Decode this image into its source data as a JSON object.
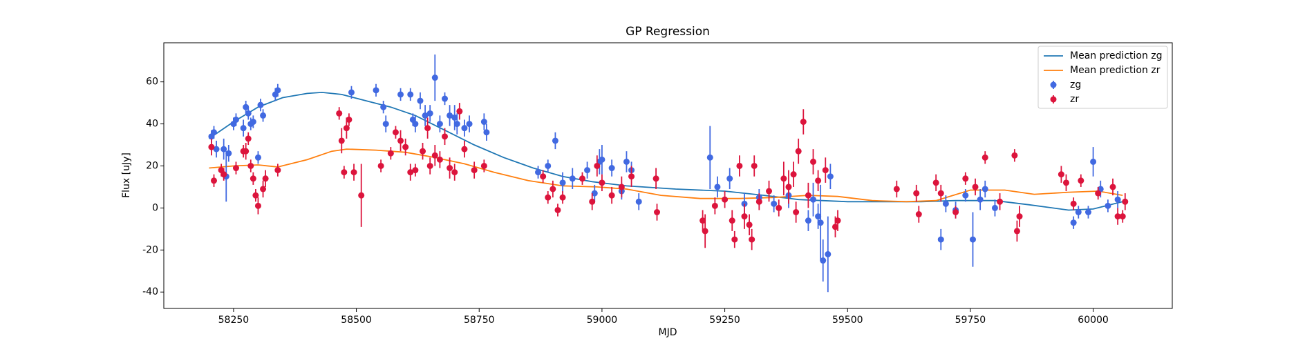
{
  "chart_data": {
    "type": "scatter",
    "title": "GP Regression",
    "x_label": "MJD",
    "y_label": "Flux [uJy]",
    "xlim": [
      58108,
      60161
    ],
    "ylim": [
      -47.8,
      78.6
    ],
    "xticks": [
      58250,
      58500,
      58750,
      59000,
      59250,
      59500,
      59750,
      60000
    ],
    "yticks": [
      -40,
      -20,
      0,
      20,
      40,
      60
    ],
    "legend": "upper right",
    "series": [
      {
        "name": "Mean prediction zg",
        "type": "line",
        "color": "#1f77b4",
        "x": [
          58200,
          58250,
          58300,
          58350,
          58400,
          58430,
          58470,
          58520,
          58570,
          58620,
          58680,
          58740,
          58800,
          58860,
          58920,
          58980,
          59050,
          59150,
          59250,
          59330,
          59400,
          59500,
          59580,
          59650,
          59720,
          59800,
          59870,
          59950,
          60000,
          60060
        ],
        "values": [
          33,
          41,
          48,
          52.5,
          54.5,
          55,
          54,
          51,
          48,
          44,
          37,
          30,
          24,
          19,
          15,
          12.5,
          10.5,
          9,
          8,
          6,
          4,
          3,
          3,
          3,
          3.5,
          3.5,
          1.5,
          -1,
          -0.5,
          3
        ]
      },
      {
        "name": "Mean prediction zr",
        "type": "line",
        "color": "#ff7f0e",
        "x": [
          58200,
          58250,
          58300,
          58340,
          58400,
          58450,
          58480,
          58540,
          58600,
          58660,
          58720,
          58780,
          58850,
          58920,
          58990,
          59050,
          59120,
          59200,
          59280,
          59350,
          59420,
          59480,
          59550,
          59620,
          59680,
          59750,
          59820,
          59880,
          59950,
          60010,
          60060
        ],
        "values": [
          19,
          20,
          20.5,
          19.5,
          23,
          27,
          28,
          27.5,
          26.5,
          24,
          21,
          17,
          13,
          10.5,
          10,
          9,
          6,
          4.5,
          4.5,
          5,
          6,
          5.5,
          3.5,
          3,
          3.5,
          8.5,
          8.5,
          6.5,
          7.5,
          8,
          6
        ]
      },
      {
        "name": "zg",
        "type": "errorbar",
        "color": "#4169e1",
        "x": [
          58205,
          58210,
          58215,
          58230,
          58235,
          58240,
          58250,
          58255,
          58270,
          58275,
          58280,
          58285,
          58290,
          58300,
          58305,
          58310,
          58335,
          58340,
          58490,
          58540,
          58555,
          58560,
          58590,
          58610,
          58615,
          58620,
          58630,
          58640,
          58650,
          58660,
          58670,
          58680,
          58690,
          58700,
          58705,
          58720,
          58730,
          58760,
          58765,
          58870,
          58890,
          58905,
          58920,
          58940,
          58970,
          58985,
          58995,
          59000,
          59020,
          59040,
          59050,
          59060,
          59075,
          59220,
          59235,
          59260,
          59290,
          59320,
          59350,
          59380,
          59420,
          59430,
          59440,
          59445,
          59450,
          59460,
          59465,
          59690,
          59700,
          59720,
          59740,
          59755,
          59770,
          59780,
          59800,
          59960,
          59970,
          59990,
          60000,
          60015,
          60030,
          60050
        ],
        "values": [
          34,
          36,
          28,
          28,
          15,
          26,
          40,
          42,
          38,
          48,
          45,
          40,
          41,
          24,
          49,
          44,
          54,
          56,
          55,
          56,
          48,
          40,
          54,
          54,
          42,
          40,
          51,
          44,
          45,
          62,
          40,
          52,
          44,
          43,
          40,
          38,
          40,
          41,
          36,
          17,
          20,
          32,
          12,
          14,
          18,
          7,
          22,
          23,
          19,
          8,
          22,
          18,
          3,
          24,
          10,
          14,
          2,
          5,
          2,
          6,
          -6,
          4,
          -4,
          -7,
          -25,
          -22,
          15,
          -15,
          2,
          -1,
          6,
          -15,
          4,
          9,
          0,
          -7,
          -2,
          -2,
          22,
          9,
          1,
          4
        ],
        "errors": [
          3,
          3,
          4,
          5,
          12,
          4,
          3,
          3,
          4,
          3,
          3,
          3,
          3,
          3,
          3,
          3,
          3,
          3,
          3,
          3,
          3,
          4,
          3,
          3,
          3,
          4,
          4,
          5,
          4,
          11,
          4,
          3,
          5,
          6,
          5,
          4,
          4,
          4,
          4,
          3,
          3,
          4,
          5,
          5,
          4,
          4,
          6,
          7,
          4,
          4,
          5,
          4,
          4,
          15,
          5,
          5,
          5,
          4,
          4,
          6,
          5,
          8,
          6,
          18,
          10,
          18,
          6,
          5,
          4,
          4,
          3,
          13,
          5,
          4,
          4,
          3,
          3,
          3,
          7,
          4,
          3,
          4
        ]
      },
      {
        "name": "zr",
        "type": "errorbar",
        "color": "#dc143c",
        "x": [
          58205,
          58210,
          58225,
          58230,
          58255,
          58270,
          58275,
          58280,
          58285,
          58290,
          58295,
          58300,
          58310,
          58315,
          58340,
          58465,
          58470,
          58475,
          58480,
          58485,
          58495,
          58510,
          58550,
          58570,
          58580,
          58590,
          58600,
          58610,
          58620,
          58635,
          58645,
          58650,
          58660,
          58670,
          58680,
          58690,
          58700,
          58710,
          58720,
          58740,
          58760,
          58880,
          58890,
          58900,
          58910,
          58920,
          58960,
          58980,
          58990,
          59000,
          59020,
          59040,
          59060,
          59110,
          59112,
          59205,
          59210,
          59230,
          59250,
          59265,
          59270,
          59280,
          59290,
          59300,
          59305,
          59310,
          59320,
          59340,
          59360,
          59370,
          59380,
          59390,
          59395,
          59400,
          59410,
          59420,
          59430,
          59440,
          59455,
          59475,
          59480,
          59600,
          59640,
          59645,
          59680,
          59690,
          59720,
          59740,
          59760,
          59780,
          59810,
          59840,
          59845,
          59850,
          59935,
          59945,
          59960,
          59975,
          60010,
          60040,
          60050,
          60060,
          60065
        ],
        "values": [
          29,
          13,
          18,
          16,
          19,
          27,
          27,
          33,
          20,
          14,
          6,
          1,
          9,
          14,
          18,
          45,
          32,
          17,
          38,
          42,
          17,
          6,
          20,
          26,
          36,
          32,
          29,
          17,
          18,
          27,
          38,
          20,
          25,
          23,
          34,
          19,
          17,
          46,
          28,
          18,
          20,
          15,
          5,
          9,
          -1,
          5,
          14,
          3,
          20,
          12,
          6,
          10,
          15,
          14,
          -2,
          -6,
          -11,
          1,
          4,
          -6,
          -15,
          20,
          -4,
          -8,
          -15,
          20,
          3,
          8,
          0,
          14,
          10,
          16,
          -2,
          27,
          41,
          6,
          22,
          13,
          18,
          -9,
          -6,
          9,
          7,
          -3,
          12,
          7,
          -2,
          14,
          10,
          24,
          3,
          25,
          -11,
          -4,
          16,
          12,
          2,
          13,
          7,
          10,
          -4,
          -4,
          3
        ],
        "errors": [
          4,
          3,
          3,
          3,
          3,
          3,
          4,
          3,
          3,
          3,
          3,
          4,
          4,
          4,
          3,
          3,
          6,
          3,
          5,
          3,
          4,
          15,
          3,
          3,
          3,
          5,
          4,
          4,
          3,
          4,
          5,
          4,
          5,
          4,
          4,
          5,
          4,
          4,
          4,
          4,
          3,
          3,
          3,
          4,
          3,
          3,
          3,
          4,
          5,
          4,
          4,
          5,
          5,
          5,
          4,
          5,
          8,
          4,
          4,
          5,
          4,
          5,
          6,
          5,
          5,
          5,
          4,
          5,
          4,
          8,
          8,
          6,
          5,
          6,
          6,
          6,
          6,
          5,
          6,
          5,
          5,
          4,
          4,
          4,
          4,
          4,
          3,
          3,
          4,
          3,
          4,
          3,
          5,
          5,
          4,
          4,
          3,
          3,
          3,
          4,
          4,
          3,
          4
        ]
      }
    ]
  }
}
